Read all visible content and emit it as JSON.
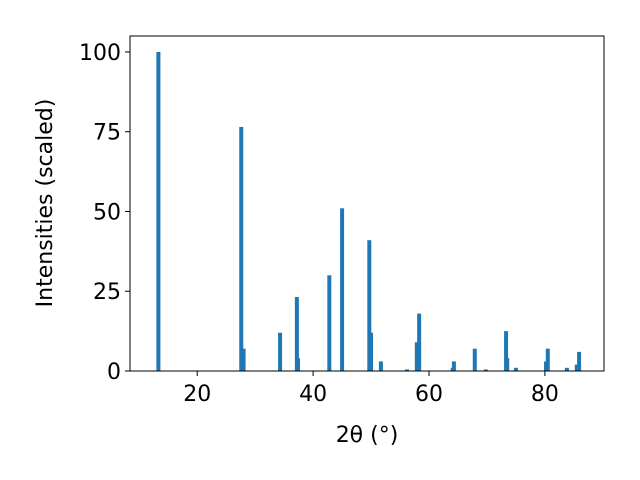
{
  "chart_data": {
    "type": "bar",
    "x_label": "2θ (°)",
    "y_label": "Intensities (scaled)",
    "x": [
      13.3,
      27.6,
      28.0,
      34.3,
      37.2,
      37.4,
      42.8,
      45.0,
      49.7,
      50.0,
      51.7,
      56.2,
      57.9,
      58.3,
      64.1,
      64.3,
      67.9,
      69.8,
      73.3,
      73.5,
      75.0,
      80.2,
      80.5,
      83.8,
      85.5,
      85.9
    ],
    "values": [
      100,
      76.5,
      7,
      12,
      23.2,
      4,
      30,
      51,
      41,
      12,
      3,
      0.5,
      9,
      18,
      1,
      3,
      7,
      0.5,
      12.5,
      4,
      1,
      3,
      7,
      1,
      2,
      6
    ],
    "color": "#1f77b4",
    "xlim": [
      8.4,
      90.2
    ],
    "xticks": [
      20,
      40,
      60,
      80
    ],
    "ylim": [
      0,
      105
    ],
    "yticks": [
      0,
      25,
      50,
      75,
      100
    ],
    "grid": false
  }
}
